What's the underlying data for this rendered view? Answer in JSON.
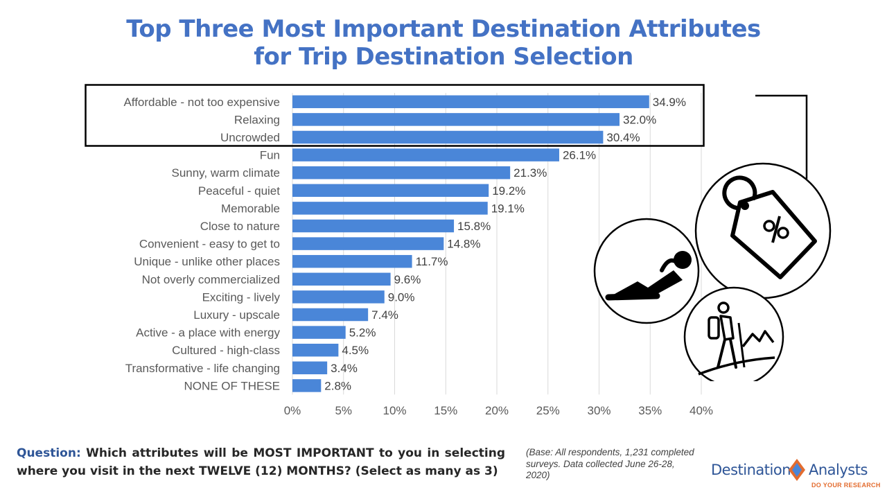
{
  "chart_data": {
    "type": "bar",
    "orientation": "horizontal",
    "title_lines": [
      "Top Three Most Important Destination Attributes",
      "for Trip Destination Selection"
    ],
    "categories": [
      "Affordable - not too expensive",
      "Relaxing",
      "Uncrowded",
      "Fun",
      "Sunny, warm climate",
      "Peaceful - quiet",
      "Memorable",
      "Close to nature",
      "Convenient - easy to get to",
      "Unique - unlike other places",
      "Not overly commercialized",
      "Exciting - lively",
      "Luxury - upscale",
      "Active -  a place with energy",
      "Cultured - high-class",
      "Transformative - life changing",
      "NONE OF THESE"
    ],
    "values": [
      34.9,
      32.0,
      30.4,
      26.1,
      21.3,
      19.2,
      19.1,
      15.8,
      14.8,
      11.7,
      9.6,
      9.0,
      7.4,
      5.2,
      4.5,
      3.4,
      2.8
    ],
    "value_labels": [
      "34.9%",
      "32.0%",
      "30.4%",
      "26.1%",
      "21.3%",
      "19.2%",
      "19.1%",
      "15.8%",
      "14.8%",
      "11.7%",
      "9.6%",
      "9.0%",
      "7.4%",
      "5.2%",
      "4.5%",
      "3.4%",
      "2.8%"
    ],
    "xlim": [
      0,
      40
    ],
    "x_ticks": [
      0,
      5,
      10,
      15,
      20,
      25,
      30,
      35,
      40
    ],
    "x_tick_labels": [
      "0%",
      "5%",
      "10%",
      "15%",
      "20%",
      "25%",
      "30%",
      "35%",
      "40%"
    ],
    "grid": "vertical",
    "highlighted_top_n": 3,
    "bar_color": "#4A86D8"
  },
  "footer": {
    "question_label": "Question:",
    "question_text": "Which attributes will be MOST IMPORTANT to you in selecting where you visit in the next TWELVE (12) MONTHS? (Select as many as 3)",
    "base_note": "(Base: All respondents, 1,231 completed surveys. Data collected June 26-28, 2020)"
  },
  "logo": {
    "word1": "Destination",
    "word2": "Analysts",
    "tagline": "DO YOUR RESEARCH",
    "blue": "#2E5597",
    "orange": "#E36C2F"
  },
  "icons": [
    "price-tag-percent-icon",
    "relaxing-person-icon",
    "hiker-mountain-icon"
  ]
}
